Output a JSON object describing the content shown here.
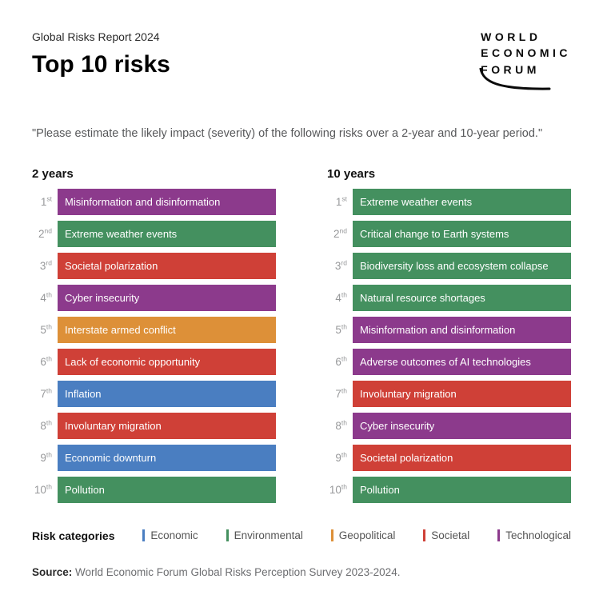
{
  "header": {
    "report_title": "Global Risks Report 2024",
    "page_title": "Top 10 risks"
  },
  "logo": {
    "lines": [
      "WORLD",
      "ECONOMIC",
      "FORUM"
    ]
  },
  "quote": "\"Please estimate the likely impact (severity) of the following risks over a 2-year and 10-year period.\"",
  "colors": {
    "economic": "#4A7EC1",
    "environmental": "#44905F",
    "geopolitical": "#DD9038",
    "societal": "#CF4037",
    "technological": "#8C3A8C"
  },
  "chart_data": {
    "type": "bar",
    "subtype": "ranked-category-list",
    "title": "Top 10 risks",
    "subtitle": "Global Risks Report 2024",
    "question": "\"Please estimate the likely impact (severity) of the following risks over a 2-year and 10-year period.\"",
    "columns": [
      {
        "title": "2 years",
        "items": [
          {
            "rank": "1",
            "suffix": "st",
            "label": "Misinformation and disinformation",
            "category": "technological"
          },
          {
            "rank": "2",
            "suffix": "nd",
            "label": "Extreme weather events",
            "category": "environmental"
          },
          {
            "rank": "3",
            "suffix": "rd",
            "label": "Societal polarization",
            "category": "societal"
          },
          {
            "rank": "4",
            "suffix": "th",
            "label": "Cyber insecurity",
            "category": "technological"
          },
          {
            "rank": "5",
            "suffix": "th",
            "label": "Interstate armed conflict",
            "category": "geopolitical"
          },
          {
            "rank": "6",
            "suffix": "th",
            "label": "Lack of economic opportunity",
            "category": "societal"
          },
          {
            "rank": "7",
            "suffix": "th",
            "label": "Inflation",
            "category": "economic"
          },
          {
            "rank": "8",
            "suffix": "th",
            "label": "Involuntary migration",
            "category": "societal"
          },
          {
            "rank": "9",
            "suffix": "th",
            "label": "Economic downturn",
            "category": "economic"
          },
          {
            "rank": "10",
            "suffix": "th",
            "label": "Pollution",
            "category": "environmental"
          }
        ]
      },
      {
        "title": "10 years",
        "items": [
          {
            "rank": "1",
            "suffix": "st",
            "label": "Extreme weather events",
            "category": "environmental"
          },
          {
            "rank": "2",
            "suffix": "nd",
            "label": "Critical change to Earth systems",
            "category": "environmental"
          },
          {
            "rank": "3",
            "suffix": "rd",
            "label": "Biodiversity loss and ecosystem collapse",
            "category": "environmental"
          },
          {
            "rank": "4",
            "suffix": "th",
            "label": "Natural resource shortages",
            "category": "environmental"
          },
          {
            "rank": "5",
            "suffix": "th",
            "label": "Misinformation and disinformation",
            "category": "technological"
          },
          {
            "rank": "6",
            "suffix": "th",
            "label": "Adverse outcomes of AI technologies",
            "category": "technological"
          },
          {
            "rank": "7",
            "suffix": "th",
            "label": "Involuntary migration",
            "category": "societal"
          },
          {
            "rank": "8",
            "suffix": "th",
            "label": "Cyber insecurity",
            "category": "technological"
          },
          {
            "rank": "9",
            "suffix": "th",
            "label": "Societal polarization",
            "category": "societal"
          },
          {
            "rank": "10",
            "suffix": "th",
            "label": "Pollution",
            "category": "environmental"
          }
        ]
      }
    ],
    "legend": {
      "title": "Risk categories",
      "items": [
        {
          "label": "Economic",
          "category": "economic"
        },
        {
          "label": "Environmental",
          "category": "environmental"
        },
        {
          "label": "Geopolitical",
          "category": "geopolitical"
        },
        {
          "label": "Societal",
          "category": "societal"
        },
        {
          "label": "Technological",
          "category": "technological"
        }
      ]
    }
  },
  "source": {
    "label": "Source:",
    "text": " World Economic Forum Global Risks Perception Survey 2023-2024."
  }
}
